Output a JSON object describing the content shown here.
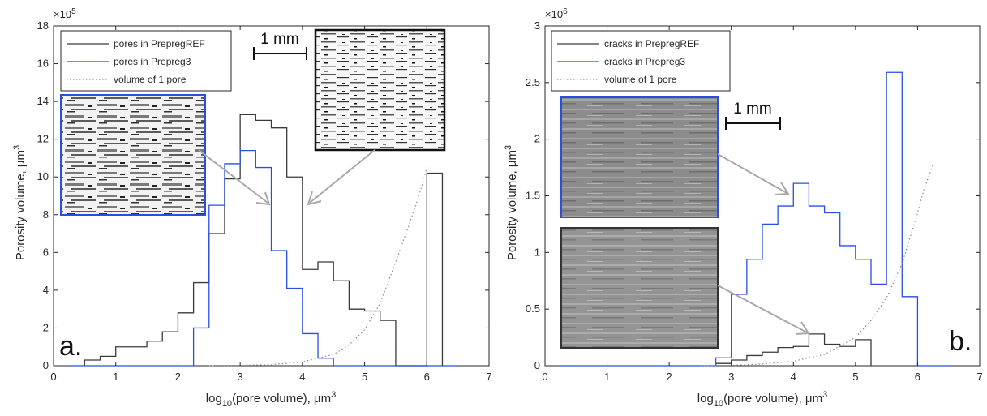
{
  "colors": {
    "black_series": "#3a3a3a",
    "blue_series": "#2a4fe0",
    "dotted": "#8a8a8a",
    "axis": "#262626"
  },
  "icons": {
    "micrograph_a_blue": "xray-slice-image",
    "micrograph_a_black": "xray-slice-image",
    "micrograph_b_blue": "sem-section-image",
    "micrograph_b_black": "sem-section-image"
  },
  "chart_data": [
    {
      "type": "area",
      "panel_tag": "a.",
      "xlabel": "log",
      "xlabel_sub": "10",
      "xlabel_rest": "(pore volume), μm",
      "xlabel_sup": "3",
      "ylabel": "Porosity volume, μm",
      "ylabel_sup": "3",
      "y_multiplier": "×10",
      "y_multiplier_exp": "5",
      "xlim": [
        0,
        7
      ],
      "ylim": [
        0,
        18
      ],
      "xticks": [
        "0",
        "1",
        "2",
        "3",
        "4",
        "5",
        "6",
        "7"
      ],
      "yticks": [
        "0",
        "2",
        "4",
        "6",
        "8",
        "10",
        "12",
        "14",
        "16",
        "18"
      ],
      "legend_position": "top-left",
      "scale_bar": "1 mm",
      "series": [
        {
          "name": "pores in PrepregREF",
          "style": "step",
          "color": "#3a3a3a",
          "edges": [
            0.5,
            0.75,
            1.0,
            1.25,
            1.5,
            1.75,
            2.0,
            2.25,
            2.5,
            2.75,
            3.0,
            3.25,
            3.5,
            3.75,
            4.0,
            4.25,
            4.5,
            4.75,
            5.0,
            5.25,
            5.5,
            5.75,
            6.0,
            6.25
          ],
          "values": [
            0.3,
            0.5,
            1.0,
            1.0,
            1.3,
            1.8,
            2.8,
            4.4,
            7.0,
            9.9,
            13.3,
            13.0,
            12.6,
            10.0,
            5.1,
            5.5,
            4.5,
            3.0,
            2.9,
            2.4,
            0,
            0,
            10.2
          ]
        },
        {
          "name": "pores in Prepreg3",
          "style": "step",
          "color": "#2a4fe0",
          "edges": [
            0.25,
            0.5,
            0.75,
            1.0,
            1.25,
            1.5,
            1.75,
            2.0,
            2.25,
            2.5,
            2.75,
            3.0,
            3.25,
            3.5,
            3.75,
            4.0,
            4.25,
            4.5,
            4.75,
            5.0,
            5.25,
            5.5,
            5.75,
            6.0,
            6.25,
            6.5
          ],
          "values": [
            0,
            0,
            0,
            0,
            0,
            0,
            0,
            0,
            2.0,
            8.5,
            10.7,
            11.4,
            10.5,
            6.1,
            4.1,
            1.7,
            0.4,
            0,
            0,
            0,
            0,
            0,
            0,
            0,
            0
          ]
        },
        {
          "name": "volume of 1 pore",
          "style": "dotted",
          "color": "#8a8a8a",
          "x": [
            2.5,
            3.0,
            3.5,
            4.0,
            4.5,
            4.75,
            5.0,
            5.25,
            5.5,
            5.75,
            5.9,
            6.0
          ],
          "y": [
            0.0,
            0.02,
            0.06,
            0.2,
            0.6,
            1.1,
            1.9,
            3.3,
            5.5,
            7.8,
            9.3,
            10.5
          ]
        }
      ]
    },
    {
      "type": "area",
      "panel_tag": "b.",
      "xlabel": "log",
      "xlabel_sub": "10",
      "xlabel_rest": "(pore volume), μm",
      "xlabel_sup": "3",
      "ylabel": "Porosity volume, μm",
      "ylabel_sup": "3",
      "y_multiplier": "×10",
      "y_multiplier_exp": "6",
      "xlim": [
        0,
        7
      ],
      "ylim": [
        0,
        3
      ],
      "xticks": [
        "0",
        "1",
        "2",
        "3",
        "4",
        "5",
        "6",
        "7"
      ],
      "yticks": [
        "0",
        "0.5",
        "1",
        "1.5",
        "2",
        "2.5",
        "3"
      ],
      "legend_position": "top-left",
      "scale_bar": "1 mm",
      "series": [
        {
          "name": "cracks in PrepregREF",
          "style": "step",
          "color": "#3a3a3a",
          "edges": [
            2.75,
            3.0,
            3.25,
            3.5,
            3.75,
            4.0,
            4.25,
            4.5,
            4.75,
            5.0,
            5.25
          ],
          "values": [
            0.02,
            0.05,
            0.09,
            0.12,
            0.16,
            0.17,
            0.28,
            0.19,
            0.17,
            0.23
          ]
        },
        {
          "name": "cracks in Prepreg3",
          "style": "step",
          "color": "#2a4fe0",
          "edges": [
            0.25,
            0.5,
            0.75,
            1.0,
            1.25,
            1.5,
            1.75,
            2.0,
            2.25,
            2.5,
            2.75,
            3.0,
            3.25,
            3.5,
            3.75,
            4.0,
            4.25,
            4.5,
            4.75,
            5.0,
            5.25,
            5.5,
            5.75,
            6.0,
            6.25,
            6.5
          ],
          "values": [
            0,
            0,
            0,
            0,
            0,
            0,
            0,
            0,
            0,
            0,
            0.07,
            0.63,
            0.94,
            1.25,
            1.41,
            1.61,
            1.41,
            1.35,
            1.06,
            0.94,
            0.72,
            2.59,
            0.61,
            0,
            0
          ]
        },
        {
          "name": "volume of 1 pore",
          "style": "dotted",
          "color": "#8a8a8a",
          "x": [
            2.5,
            3.0,
            3.5,
            4.0,
            4.5,
            5.0,
            5.25,
            5.5,
            5.75,
            6.0,
            6.1,
            6.25
          ],
          "y": [
            0.0,
            0.004,
            0.015,
            0.04,
            0.1,
            0.25,
            0.4,
            0.6,
            0.9,
            1.35,
            1.55,
            1.78
          ]
        }
      ]
    }
  ]
}
